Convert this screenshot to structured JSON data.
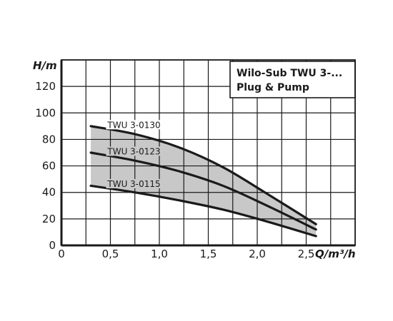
{
  "chart_data": {
    "type": "line",
    "title_lines": [
      "Wilo-Sub TWU 3-...",
      "Plug & Pump"
    ],
    "xlabel": "Q/m³/h",
    "ylabel": "H/m",
    "xlim": [
      0,
      3.0
    ],
    "ylim": [
      0,
      140
    ],
    "grid": true,
    "legend": "none",
    "x_ticks": [
      {
        "value": 0,
        "label": "0"
      },
      {
        "value": 0.5,
        "label": "0,5"
      },
      {
        "value": 1.0,
        "label": "1,0"
      },
      {
        "value": 1.5,
        "label": "1,5"
      },
      {
        "value": 2.0,
        "label": "2,0"
      },
      {
        "value": 2.5,
        "label": "2,5"
      }
    ],
    "y_ticks": [
      {
        "value": 0,
        "label": "0"
      },
      {
        "value": 20,
        "label": "20"
      },
      {
        "value": 40,
        "label": "40"
      },
      {
        "value": 60,
        "label": "60"
      },
      {
        "value": 80,
        "label": "80"
      },
      {
        "value": 100,
        "label": "100"
      },
      {
        "value": 120,
        "label": "120"
      }
    ],
    "series": [
      {
        "name": "TWU 3-0130",
        "x": [
          0.3,
          0.75,
          1.2,
          1.65,
          2.1,
          2.6
        ],
        "y": [
          90,
          84,
          74,
          59,
          39,
          16
        ]
      },
      {
        "name": "TWU 3-0123",
        "x": [
          0.3,
          0.75,
          1.2,
          1.65,
          2.1,
          2.6
        ],
        "y": [
          70,
          64,
          56,
          45,
          30,
          12
        ]
      },
      {
        "name": "TWU 3-0115",
        "x": [
          0.3,
          0.75,
          1.2,
          1.65,
          2.1,
          2.6
        ],
        "y": [
          45,
          40,
          34,
          27,
          18,
          7
        ]
      }
    ],
    "band_color": "#c8c8c8",
    "line_color": "#1a1a1a",
    "grid_color": "#1a1a1a"
  }
}
